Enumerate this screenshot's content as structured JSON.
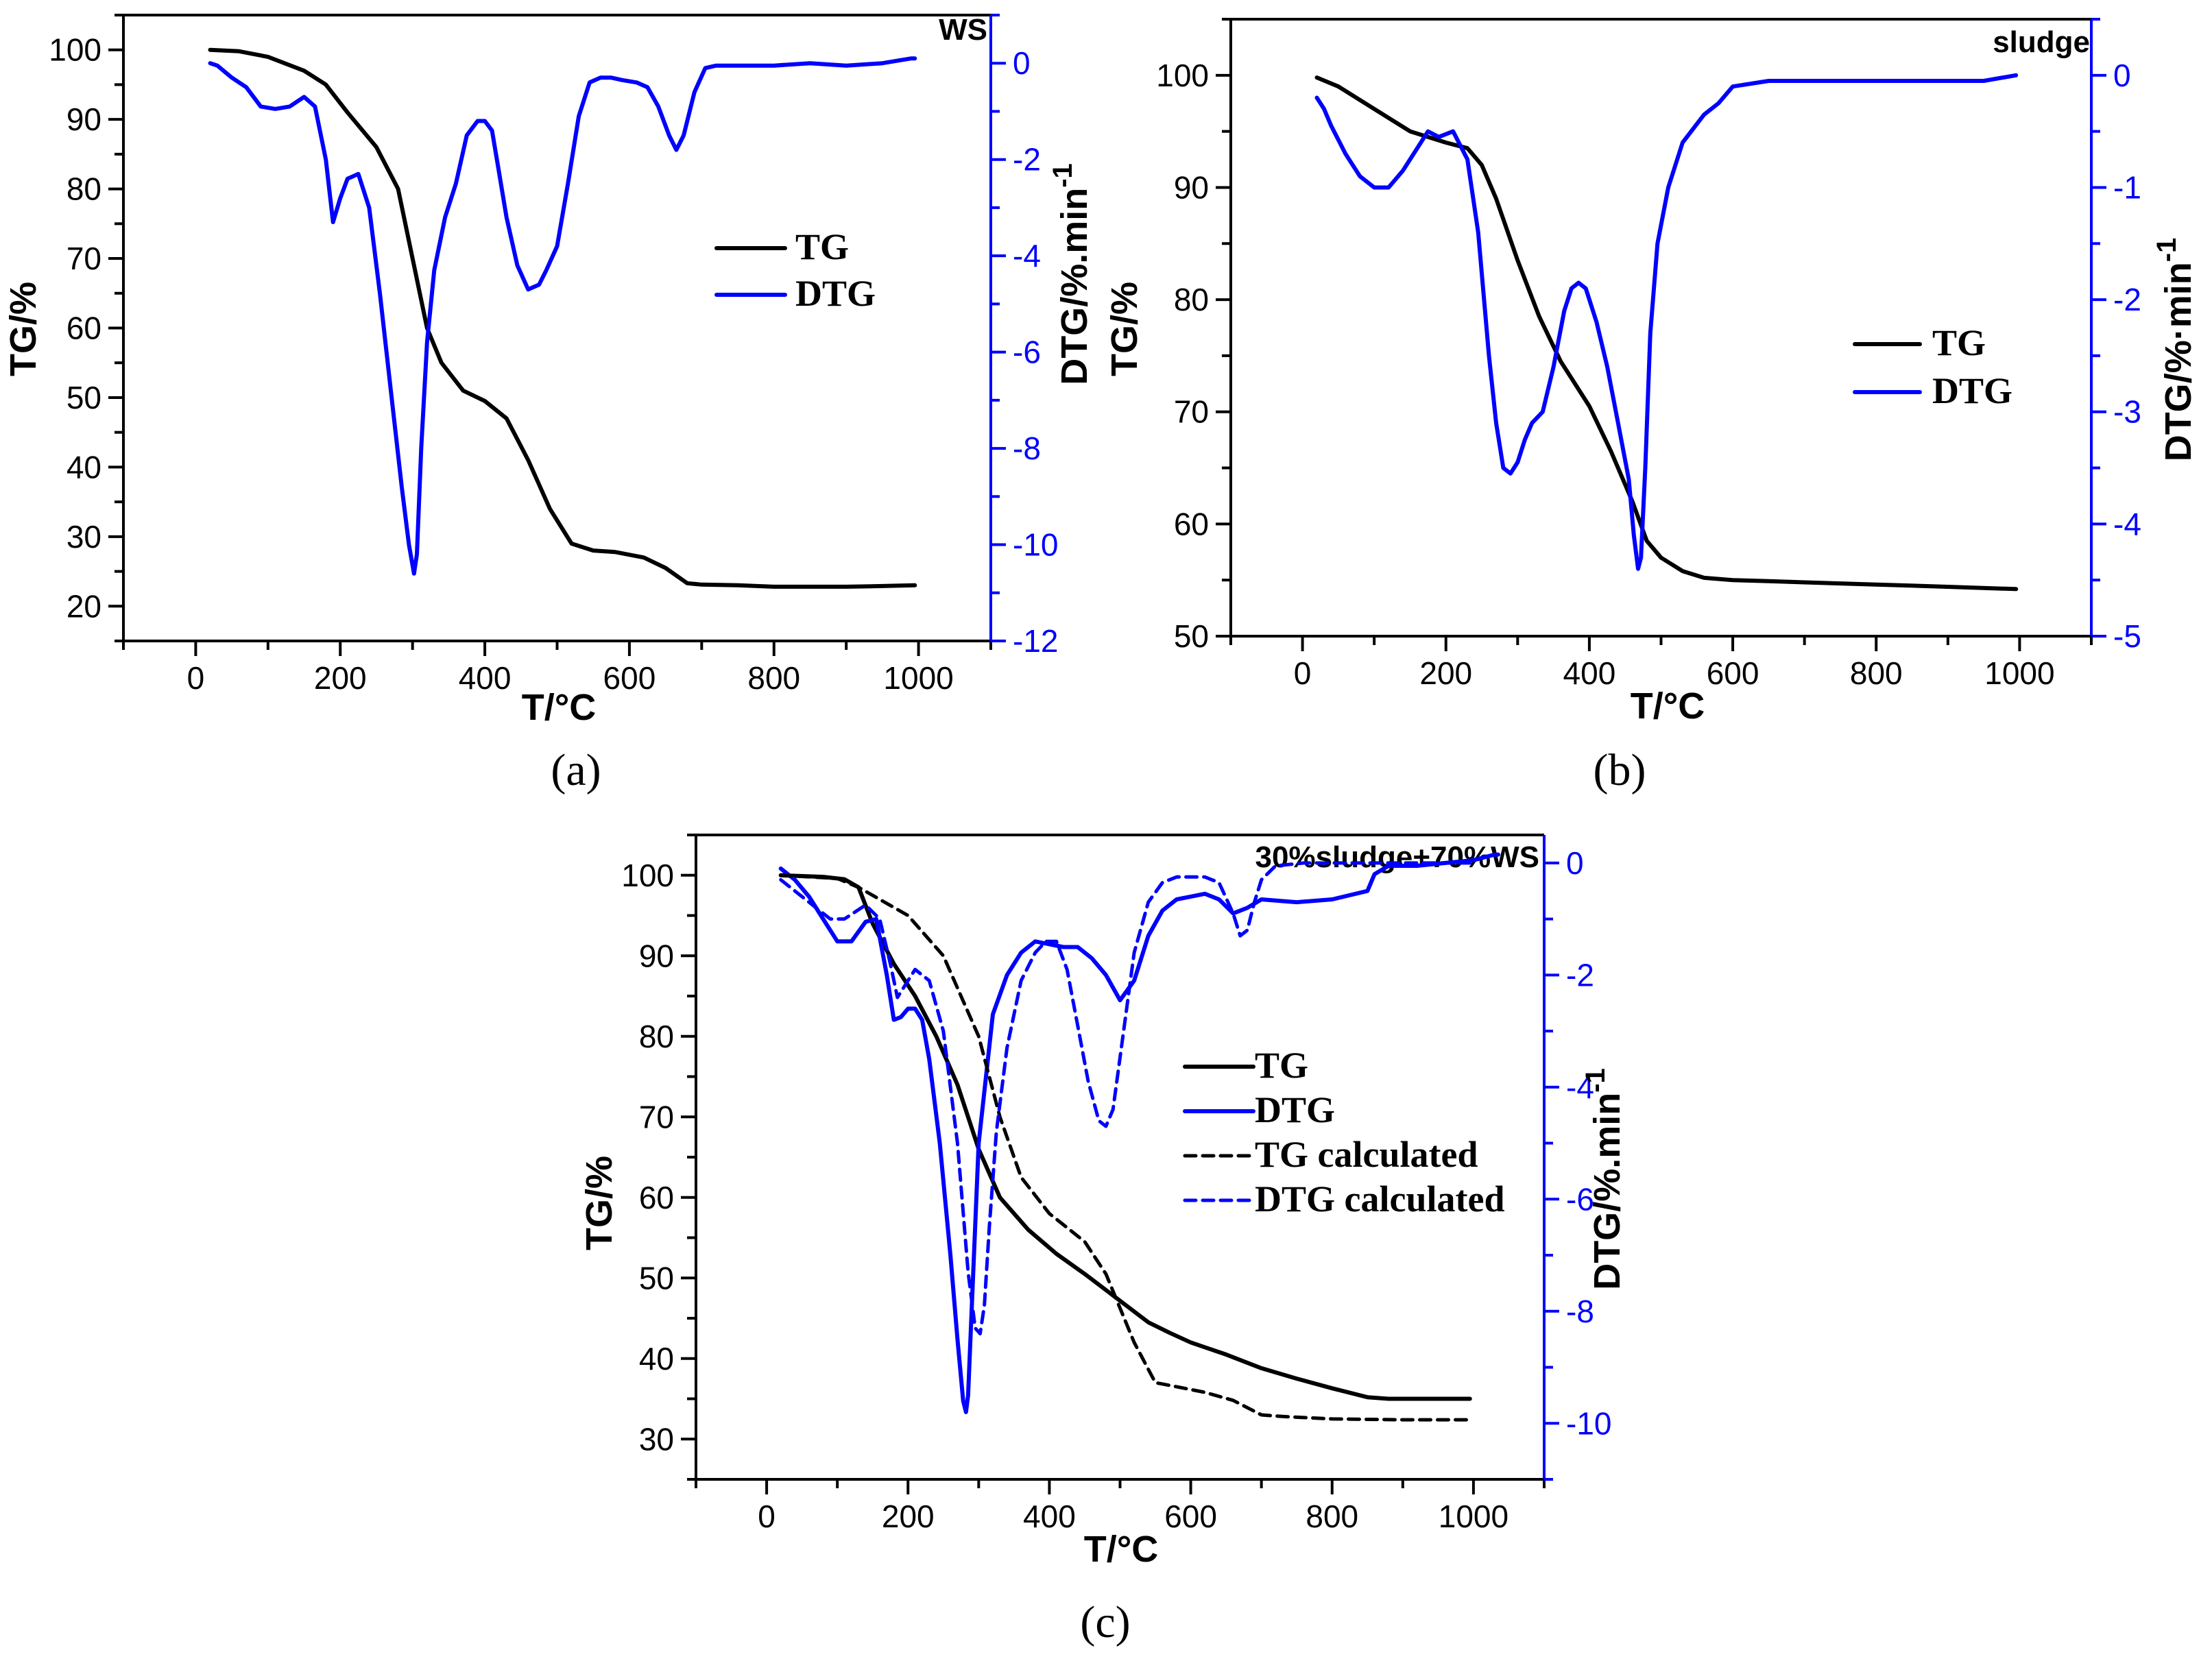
{
  "chart_data": [
    {
      "type": "line",
      "panel_label": "(a)",
      "sample": "WS",
      "xlabel": "T/°C",
      "ylabel": "TG/%",
      "y2label": "DTG/%.min",
      "y2label_sup": "-1",
      "xlim": [
        -100,
        1100
      ],
      "ylim": [
        15,
        105
      ],
      "y2lim": [
        -12,
        1
      ],
      "xticks": [
        0,
        200,
        400,
        600,
        800,
        1000
      ],
      "yticks": [
        20,
        30,
        40,
        50,
        60,
        70,
        80,
        90,
        100
      ],
      "y2ticks": [
        -12,
        -10,
        -8,
        -6,
        -4,
        -2,
        0
      ],
      "legend": [
        "TG",
        "DTG"
      ],
      "series": [
        {
          "name": "TG",
          "axis": "left",
          "style": "solid-black",
          "x": [
            20,
            60,
            100,
            150,
            180,
            210,
            250,
            280,
            300,
            320,
            340,
            370,
            400,
            430,
            460,
            490,
            520,
            550,
            580,
            620,
            650,
            680,
            700,
            750,
            800,
            850,
            900,
            950,
            995
          ],
          "y": [
            100,
            99.8,
            99,
            97,
            95,
            91,
            86,
            80,
            70,
            60,
            55,
            51,
            49.5,
            47,
            41,
            34,
            29,
            28,
            27.8,
            27,
            25.5,
            23.3,
            23.1,
            23,
            22.8,
            22.8,
            22.8,
            22.9,
            23
          ]
        },
        {
          "name": "DTG",
          "axis": "right",
          "style": "solid-blue",
          "x": [
            20,
            30,
            50,
            70,
            90,
            110,
            130,
            150,
            165,
            180,
            190,
            200,
            210,
            225,
            240,
            255,
            270,
            285,
            295,
            302,
            306,
            312,
            320,
            330,
            345,
            360,
            375,
            390,
            400,
            410,
            420,
            430,
            445,
            460,
            475,
            485,
            500,
            515,
            530,
            545,
            560,
            575,
            590,
            610,
            625,
            640,
            655,
            665,
            675,
            690,
            705,
            720,
            760,
            800,
            850,
            900,
            950,
            990,
            995
          ],
          "y": [
            0,
            -0.05,
            -0.3,
            -0.5,
            -0.9,
            -0.95,
            -0.9,
            -0.7,
            -0.9,
            -2,
            -3.3,
            -2.8,
            -2.4,
            -2.3,
            -3,
            -4.8,
            -6.8,
            -8.8,
            -10,
            -10.6,
            -10.2,
            -8,
            -5.8,
            -4.3,
            -3.2,
            -2.5,
            -1.5,
            -1.2,
            -1.2,
            -1.4,
            -2.3,
            -3.2,
            -4.2,
            -4.7,
            -4.6,
            -4.3,
            -3.8,
            -2.5,
            -1.1,
            -0.4,
            -0.3,
            -0.3,
            -0.35,
            -0.4,
            -0.5,
            -0.9,
            -1.5,
            -1.8,
            -1.5,
            -0.6,
            -0.1,
            -0.05,
            -0.05,
            -0.05,
            0,
            -0.05,
            0,
            0.1,
            0.1
          ]
        }
      ]
    },
    {
      "type": "line",
      "panel_label": "(b)",
      "sample": "sludge",
      "xlabel": "T/°C",
      "ylabel": "TG/%",
      "y2label": "DTG/%·min",
      "y2label_sup": "-1",
      "xlim": [
        -100,
        1100
      ],
      "ylim": [
        50,
        105
      ],
      "y2lim": [
        -5,
        0.5
      ],
      "xticks": [
        0,
        200,
        400,
        600,
        800,
        1000
      ],
      "yticks": [
        50,
        60,
        70,
        80,
        90,
        100
      ],
      "y2ticks": [
        -5,
        -4,
        -3,
        -2,
        -1,
        0
      ],
      "legend": [
        "TG",
        "DTG"
      ],
      "series": [
        {
          "name": "TG",
          "axis": "left",
          "style": "solid-black",
          "x": [
            20,
            50,
            100,
            150,
            200,
            230,
            250,
            270,
            300,
            330,
            360,
            400,
            430,
            460,
            480,
            500,
            530,
            560,
            600,
            650,
            700,
            800,
            900,
            995
          ],
          "y": [
            99.8,
            99,
            97,
            95,
            94,
            93.5,
            92,
            89,
            83.5,
            78.5,
            74.5,
            70.5,
            66.5,
            62,
            58.5,
            57,
            55.8,
            55.2,
            55,
            54.9,
            54.8,
            54.6,
            54.4,
            54.2
          ]
        },
        {
          "name": "DTG",
          "axis": "right",
          "style": "solid-blue",
          "x": [
            20,
            30,
            40,
            60,
            80,
            100,
            120,
            140,
            160,
            175,
            190,
            210,
            230,
            245,
            260,
            270,
            280,
            290,
            300,
            310,
            320,
            335,
            350,
            365,
            375,
            385,
            395,
            410,
            425,
            440,
            455,
            462,
            468,
            472,
            478,
            485,
            495,
            510,
            530,
            560,
            580,
            600,
            650,
            700,
            750,
            800,
            850,
            900,
            950,
            995
          ],
          "y": [
            -0.2,
            -0.3,
            -0.45,
            -0.7,
            -0.9,
            -1,
            -1,
            -0.85,
            -0.65,
            -0.5,
            -0.55,
            -0.5,
            -0.75,
            -1.4,
            -2.5,
            -3.1,
            -3.5,
            -3.55,
            -3.45,
            -3.25,
            -3.1,
            -3,
            -2.6,
            -2.1,
            -1.9,
            -1.85,
            -1.9,
            -2.2,
            -2.6,
            -3.1,
            -3.6,
            -4.1,
            -4.4,
            -4.3,
            -3.5,
            -2.3,
            -1.5,
            -1,
            -0.6,
            -0.35,
            -0.25,
            -0.1,
            -0.05,
            -0.05,
            -0.05,
            -0.05,
            -0.05,
            -0.05,
            -0.05,
            0
          ]
        }
      ]
    },
    {
      "type": "line",
      "panel_label": "(c)",
      "sample": "30%sludge+70%WS",
      "xlabel": "T/°C",
      "ylabel": "TG/%",
      "y2label": "DTG/%.min",
      "y2label_sup": "-1",
      "xlim": [
        -100,
        1100
      ],
      "ylim": [
        25,
        105
      ],
      "y2lim": [
        -11,
        0.5
      ],
      "xticks": [
        0,
        200,
        400,
        600,
        800,
        1000
      ],
      "yticks": [
        30,
        40,
        50,
        60,
        70,
        80,
        90,
        100
      ],
      "y2ticks": [
        -10,
        -8,
        -6,
        -4,
        -2,
        0
      ],
      "legend": [
        "TG",
        "DTG",
        "TG calculated",
        "DTG calculated"
      ],
      "series": [
        {
          "name": "TG",
          "axis": "left",
          "style": "solid-black",
          "x": [
            20,
            80,
            110,
            130,
            150,
            180,
            210,
            240,
            270,
            300,
            330,
            370,
            410,
            450,
            480,
            510,
            540,
            570,
            600,
            650,
            700,
            750,
            800,
            850,
            880,
            950,
            995
          ],
          "y": [
            100,
            99.8,
            99.5,
            98.5,
            94,
            89,
            85,
            80,
            74,
            66,
            60,
            56,
            53,
            50.5,
            48.5,
            46.5,
            44.5,
            43.2,
            42,
            40.5,
            38.8,
            37.5,
            36.3,
            35.2,
            35,
            35,
            35
          ]
        },
        {
          "name": "DTG",
          "axis": "right",
          "style": "solid-blue",
          "x": [
            20,
            40,
            60,
            80,
            100,
            120,
            140,
            155,
            170,
            180,
            190,
            200,
            210,
            220,
            230,
            245,
            260,
            270,
            278,
            282,
            285,
            290,
            300,
            320,
            340,
            360,
            380,
            400,
            420,
            440,
            460,
            480,
            500,
            520,
            540,
            560,
            580,
            600,
            620,
            640,
            660,
            680,
            700,
            750,
            800,
            850,
            860,
            880,
            920,
            960,
            1000,
            1030,
            1035
          ],
          "y": [
            -0.1,
            -0.3,
            -0.6,
            -1,
            -1.4,
            -1.4,
            -1.05,
            -1,
            -2,
            -2.8,
            -2.75,
            -2.6,
            -2.6,
            -2.8,
            -3.5,
            -5,
            -7,
            -8.5,
            -9.6,
            -9.8,
            -9.5,
            -8,
            -5,
            -2.7,
            -2,
            -1.6,
            -1.4,
            -1.45,
            -1.5,
            -1.5,
            -1.7,
            -2,
            -2.45,
            -2.1,
            -1.3,
            -0.85,
            -0.65,
            -0.6,
            -0.55,
            -0.65,
            -0.9,
            -0.8,
            -0.65,
            -0.7,
            -0.65,
            -0.5,
            -0.2,
            -0.05,
            -0.05,
            0,
            0.05,
            0.15,
            0.15
          ]
        },
        {
          "name": "TG calculated",
          "axis": "left",
          "style": "dashed-black",
          "x": [
            20,
            100,
            130,
            150,
            200,
            250,
            300,
            330,
            360,
            400,
            450,
            480,
            520,
            550,
            580,
            620,
            660,
            700,
            730,
            800,
            900,
            995
          ],
          "y": [
            100,
            99.6,
            98.5,
            97.5,
            95,
            90,
            80,
            70,
            62.5,
            58,
            54.5,
            50.5,
            42,
            37,
            36.5,
            35.8,
            34.8,
            33,
            32.8,
            32.5,
            32.4,
            32.4
          ]
        },
        {
          "name": "DTG calculated",
          "axis": "right",
          "style": "dashed-blue",
          "x": [
            20,
            60,
            90,
            110,
            140,
            160,
            175,
            185,
            195,
            210,
            230,
            250,
            270,
            285,
            295,
            302,
            308,
            315,
            325,
            340,
            360,
            380,
            395,
            410,
            425,
            440,
            455,
            470,
            480,
            490,
            505,
            520,
            540,
            560,
            580,
            600,
            620,
            640,
            660,
            670,
            680,
            690,
            700,
            720,
            760,
            800,
            850,
            900,
            1000
          ],
          "y": [
            -0.3,
            -0.7,
            -1,
            -1,
            -0.75,
            -1,
            -1.8,
            -2.4,
            -2.2,
            -1.9,
            -2.1,
            -3,
            -5,
            -7.3,
            -8.3,
            -8.4,
            -7.9,
            -6.5,
            -4.8,
            -3.3,
            -2.1,
            -1.6,
            -1.4,
            -1.4,
            -1.9,
            -2.9,
            -3.9,
            -4.6,
            -4.7,
            -4.4,
            -3,
            -1.6,
            -0.7,
            -0.35,
            -0.25,
            -0.25,
            -0.25,
            -0.35,
            -0.9,
            -1.3,
            -1.2,
            -0.7,
            -0.3,
            -0.05,
            0,
            0,
            0,
            0,
            0
          ]
        }
      ]
    }
  ]
}
